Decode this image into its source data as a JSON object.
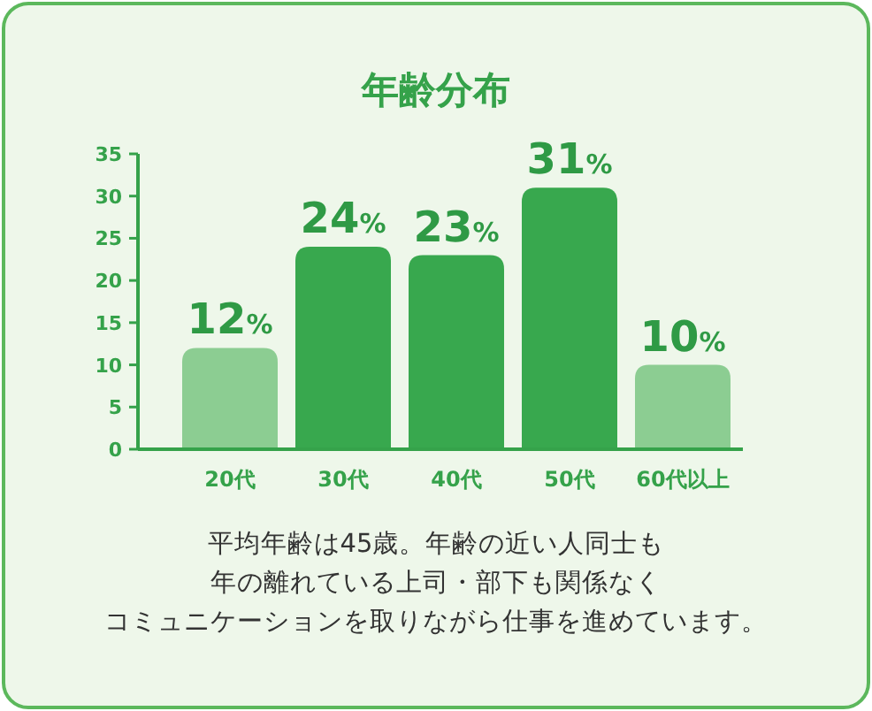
{
  "chart_data": {
    "type": "bar",
    "title": "年齢分布",
    "categories": [
      "20代",
      "30代",
      "40代",
      "50代",
      "60代以上"
    ],
    "values": [
      12,
      24,
      23,
      31,
      10
    ],
    "value_labels": [
      "12%",
      "24%",
      "23%",
      "31%",
      "10%"
    ],
    "colors": [
      "#8ccd92",
      "#38a84e",
      "#38a84e",
      "#38a84e",
      "#8ccd92"
    ],
    "ylim": [
      0,
      35
    ],
    "yticks": [
      0,
      5,
      10,
      15,
      20,
      25,
      30,
      35
    ],
    "annotations": [
      "平均年齢は45歳。年齢の近い人同士も",
      "年の離れている上司・部下も関係なく",
      "コミュニケーションを取りながら仕事を進めています。"
    ]
  }
}
